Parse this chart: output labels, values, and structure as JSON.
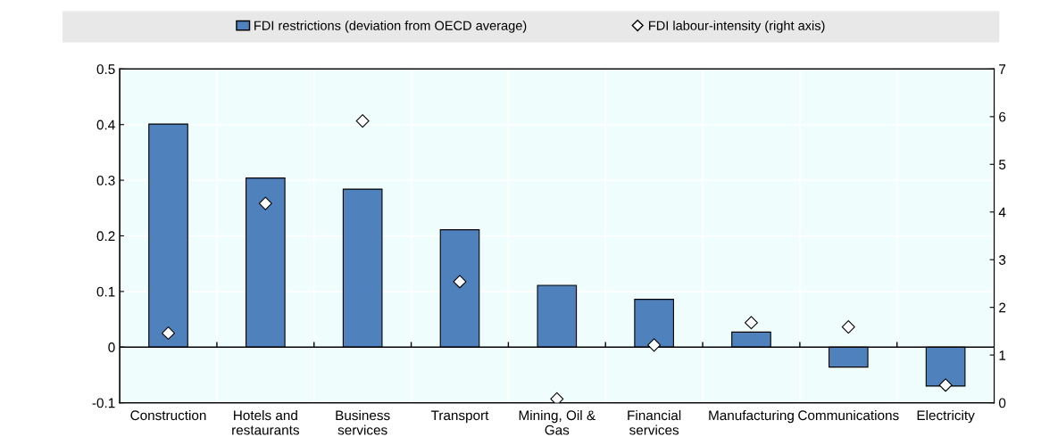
{
  "chart_data": {
    "type": "bar",
    "categories": [
      "Construction",
      "Hotels and\nrestaurants",
      "Business\nservices",
      "Transport",
      "Mining, Oil &\nGas",
      "Financial\nservices",
      "Manufacturing",
      "Communications",
      "Electricity"
    ],
    "series": [
      {
        "name": "FDI restrictions (deviation from OECD average)",
        "color": "#4f81bd",
        "values": [
          0.401,
          0.304,
          0.284,
          0.211,
          0.111,
          0.086,
          0.027,
          -0.036,
          -0.07
        ]
      },
      {
        "name": "FDI labour-intensity (right axis)",
        "type": "scatter",
        "axis": "y2",
        "color": "#ffffff",
        "marker": "diamond",
        "values": [
          1.46,
          4.18,
          5.91,
          2.54,
          0.08,
          1.21,
          1.68,
          1.59,
          0.37
        ]
      }
    ],
    "ylim": [
      -0.1,
      0.5
    ],
    "yticks": [
      {
        "value": -0.1,
        "label": "-0.1"
      },
      0,
      0.1,
      0.2,
      0.3,
      0.4,
      0.5
    ],
    "y2lim": [
      0,
      7
    ],
    "y2ticks": [
      0,
      1,
      2,
      3,
      4,
      5,
      6,
      7
    ],
    "grid": true,
    "legend": "top"
  }
}
